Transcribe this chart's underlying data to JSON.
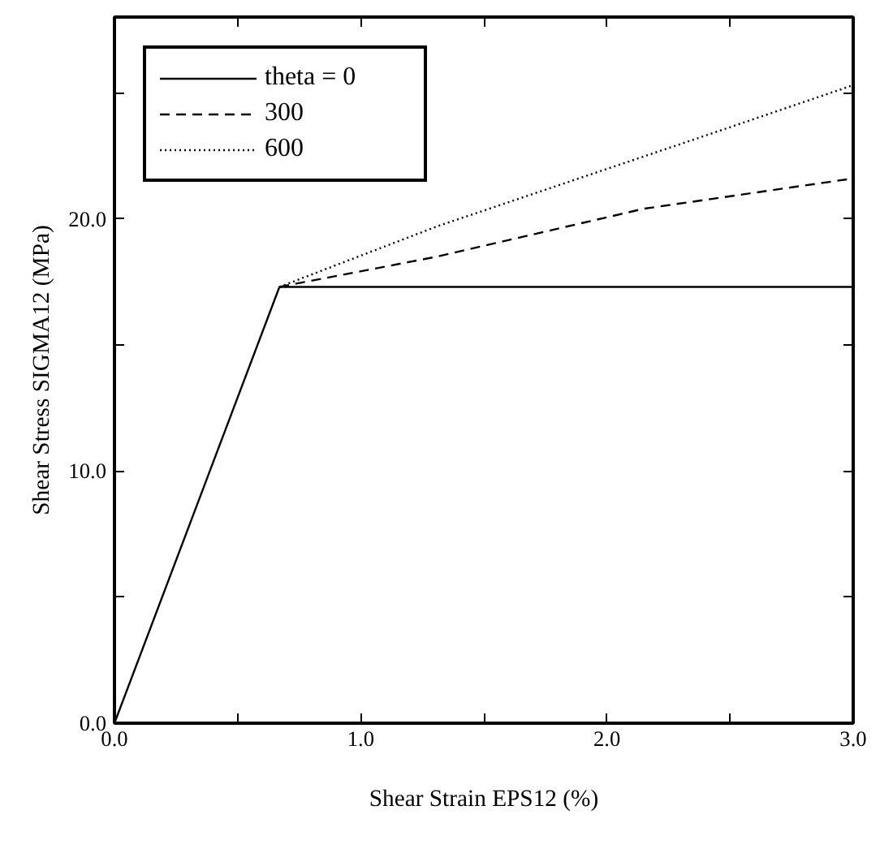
{
  "chart_data": {
    "type": "line",
    "xlabel": "Shear Strain EPS12 (%)",
    "ylabel": "Shear Stress SIGMA12 (MPa)",
    "xlim": [
      0,
      3.0
    ],
    "ylim": [
      0,
      28
    ],
    "xticks": [
      {
        "value": 0,
        "label": "0.0"
      },
      {
        "value": 0.5,
        "label": null
      },
      {
        "value": 1,
        "label": "1.0"
      },
      {
        "value": 1.5,
        "label": null
      },
      {
        "value": 2,
        "label": "2.0"
      },
      {
        "value": 2.5,
        "label": null
      },
      {
        "value": 3,
        "label": "3.0"
      }
    ],
    "yticks": [
      {
        "value": 0,
        "label": "0.0"
      },
      {
        "value": 5,
        "label": null
      },
      {
        "value": 10,
        "label": "10.0"
      },
      {
        "value": 15,
        "label": null
      },
      {
        "value": 20,
        "label": "20.0"
      },
      {
        "value": 25,
        "label": null
      }
    ],
    "grid": false,
    "legend": "top left",
    "marker": "none",
    "series": [
      {
        "name": "theta = 0",
        "color": "#000000",
        "line_style": "solid",
        "x": [
          0,
          0.67,
          3.0
        ],
        "values": [
          0,
          17.3,
          17.3
        ]
      },
      {
        "name": "300",
        "color": "#000000",
        "line_style": "dashed",
        "x": [
          0.67,
          1.31,
          2.15,
          3.0
        ],
        "values": [
          17.3,
          18.5,
          20.4,
          21.6
        ]
      },
      {
        "name": "600",
        "color": "#000000",
        "line_style": "dotted",
        "x": [
          0.67,
          1.31,
          2.37,
          3.0
        ],
        "values": [
          17.3,
          19.7,
          23.2,
          25.3
        ]
      }
    ]
  }
}
